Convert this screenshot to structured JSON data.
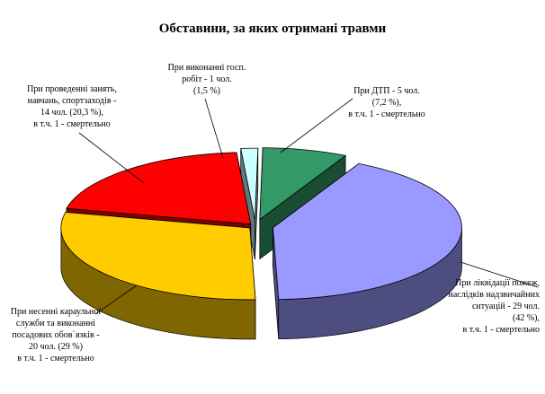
{
  "chart_data": {
    "type": "pie",
    "title": "Обставини, за яких отримані травми",
    "slices": [
      {
        "value": 29,
        "percent": 42,
        "color": "#9999FF",
        "side_color": "#4D4D80",
        "label_lines": [
          "При ліквідації пожеж,",
          "наслідків надзвичайних",
          "ситуацій - 29 чол.",
          "(42 %),",
          "в т.ч. 1 - смертельно"
        ]
      },
      {
        "value": 20,
        "percent": 29,
        "color": "#FFCC00",
        "side_color": "#806600",
        "label_lines": [
          "При несенні караульної",
          "служби та виконанні",
          "посадових обов`язків -",
          "20 чол. (29 %)",
          "в т.ч. 1 - смертельно"
        ]
      },
      {
        "value": 14,
        "percent": 20.3,
        "color": "#FF0000",
        "side_color": "#800000",
        "label_lines": [
          "При проведенні занять,",
          "навчань, спортзаходів -",
          "14 чол. (20,3 %),",
          "в т.ч. 1 - смертельно"
        ]
      },
      {
        "value": 1,
        "percent": 1.5,
        "color": "#CCFFFF",
        "side_color": "#5F7A7A",
        "label_lines": [
          "При виконанні госп.",
          "робіт - 1 чол.",
          "(1,5 %)"
        ]
      },
      {
        "value": 5,
        "percent": 7.2,
        "color": "#339966",
        "side_color": "#1A4D33",
        "label_lines": [
          "При ДТП - 5 чол.",
          "(7,2 %),",
          "в т.ч. 1 - смертельно"
        ]
      }
    ]
  }
}
